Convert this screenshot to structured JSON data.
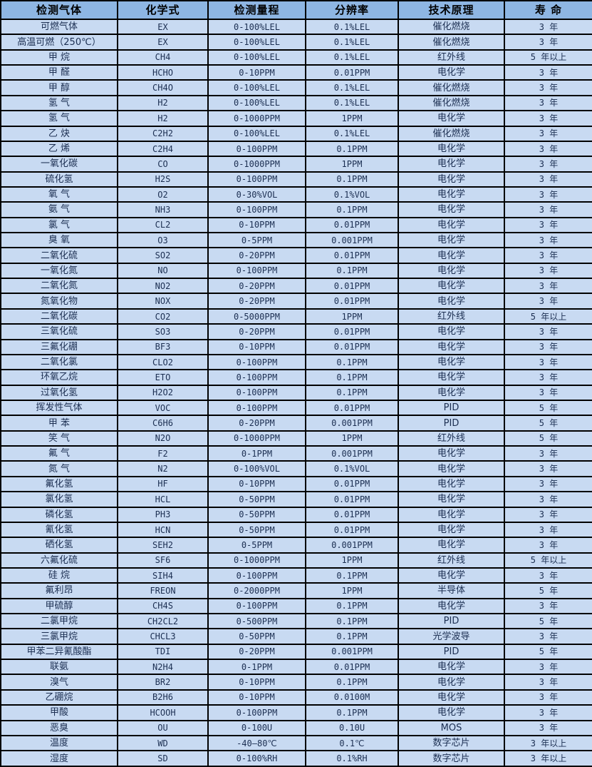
{
  "colors": {
    "header_bg": "#8eb6e3",
    "cell_bg": "#c8daf2",
    "border": "#000000",
    "body_text": "#1c2f52",
    "header_text": "#000000"
  },
  "table": {
    "columns": [
      {
        "label": "检测气体"
      },
      {
        "label": "化学式"
      },
      {
        "label": "检测量程"
      },
      {
        "label": "分辨率"
      },
      {
        "label": "技术原理"
      },
      {
        "label": "寿 命"
      }
    ],
    "column_keys": [
      "gas-name",
      "chemical-formula",
      "detection-range",
      "resolution",
      "technology-principle",
      "lifespan"
    ],
    "rows": [
      [
        "可燃气体",
        "EX",
        "0-100%LEL",
        "0.1%LEL",
        "催化燃烧",
        "3 年"
      ],
      [
        "高温可燃（250℃）",
        "EX",
        "0-100%LEL",
        "0.1%LEL",
        "催化燃烧",
        "3 年"
      ],
      [
        "甲 烷",
        "CH4",
        "0-100%LEL",
        "0.1%LEL",
        "红外线",
        "5 年以上"
      ],
      [
        "甲 醛",
        "HCHO",
        "0-10PPM",
        "0.01PPM",
        "电化学",
        "3 年"
      ],
      [
        "甲 醇",
        "CH4O",
        "0-100%LEL",
        "0.1%LEL",
        "催化燃烧",
        "3 年"
      ],
      [
        "氢 气",
        "H2",
        "0-100%LEL",
        "0.1%LEL",
        "催化燃烧",
        "3 年"
      ],
      [
        "氢 气",
        "H2",
        "0-1000PPM",
        "1PPM",
        "电化学",
        "3 年"
      ],
      [
        "乙 炔",
        "C2H2",
        "0-100%LEL",
        "0.1%LEL",
        "催化燃烧",
        "3 年"
      ],
      [
        "乙 烯",
        "C2H4",
        "0-100PPM",
        "0.1PPM",
        "电化学",
        "3 年"
      ],
      [
        "一氧化碳",
        "CO",
        "0-1000PPM",
        "1PPM",
        "电化学",
        "3 年"
      ],
      [
        "硫化氢",
        "H2S",
        "0-100PPM",
        "0.1PPM",
        "电化学",
        "3 年"
      ],
      [
        "氧 气",
        "O2",
        "0-30%VOL",
        "0.1%VOL",
        "电化学",
        "3 年"
      ],
      [
        "氨 气",
        "NH3",
        "0-100PPM",
        "0.1PPM",
        "电化学",
        "3 年"
      ],
      [
        "氯 气",
        "CL2",
        "0-10PPM",
        "0.01PPM",
        "电化学",
        "3 年"
      ],
      [
        "臭 氧",
        "O3",
        "0-5PPM",
        "0.001PPM",
        "电化学",
        "3 年"
      ],
      [
        "二氧化硫",
        "SO2",
        "0-20PPM",
        "0.01PPM",
        "电化学",
        "3 年"
      ],
      [
        "一氧化氮",
        "NO",
        "0-100PPM",
        "0.1PPM",
        "电化学",
        "3 年"
      ],
      [
        "二氧化氮",
        "NO2",
        "0-20PPM",
        "0.01PPM",
        "电化学",
        "3 年"
      ],
      [
        "氮氧化物",
        "NOX",
        "0-20PPM",
        "0.01PPM",
        "电化学",
        "3 年"
      ],
      [
        "二氧化碳",
        "CO2",
        "0-5000PPM",
        "1PPM",
        "红外线",
        "5 年以上"
      ],
      [
        "三氧化硫",
        "SO3",
        "0-20PPM",
        "0.01PPM",
        "电化学",
        "3 年"
      ],
      [
        "三氟化硼",
        "BF3",
        "0-10PPM",
        "0.01PPM",
        "电化学",
        "3 年"
      ],
      [
        "二氧化氯",
        "CLO2",
        "0-100PPM",
        "0.1PPM",
        "电化学",
        "3 年"
      ],
      [
        "环氧乙烷",
        "ETO",
        "0-100PPM",
        "0.1PPM",
        "电化学",
        "3 年"
      ],
      [
        "过氧化氢",
        "H2O2",
        "0-100PPM",
        "0.1PPM",
        "电化学",
        "3 年"
      ],
      [
        "挥发性气体",
        "VOC",
        "0-100PPM",
        "0.01PPM",
        "PID",
        "5 年"
      ],
      [
        "甲 苯",
        "C6H6",
        "0-20PPM",
        "0.001PPM",
        "PID",
        "5 年"
      ],
      [
        "笑 气",
        "N2O",
        "0-1000PPM",
        "1PPM",
        "红外线",
        "5 年"
      ],
      [
        "氟 气",
        "F2",
        "0-1PPM",
        "0.001PPM",
        "电化学",
        "3 年"
      ],
      [
        "氮 气",
        "N2",
        "0-100%VOL",
        "0.1%VOL",
        "电化学",
        "3 年"
      ],
      [
        "氟化氢",
        "HF",
        "0-10PPM",
        "0.01PPM",
        "电化学",
        "3 年"
      ],
      [
        "氯化氢",
        "HCL",
        "0-50PPM",
        "0.01PPM",
        "电化学",
        "3 年"
      ],
      [
        "磷化氢",
        "PH3",
        "0-50PPM",
        "0.01PPM",
        "电化学",
        "3 年"
      ],
      [
        "氰化氢",
        "HCN",
        "0-50PPM",
        "0.01PPM",
        "电化学",
        "3 年"
      ],
      [
        "硒化氢",
        "SEH2",
        "0-5PPM",
        "0.001PPM",
        "电化学",
        "3 年"
      ],
      [
        "六氟化硫",
        "SF6",
        "0-1000PPM",
        "1PPM",
        "红外线",
        "5 年以上"
      ],
      [
        "硅 烷",
        "SIH4",
        "0-100PPM",
        "0.1PPM",
        "电化学",
        "3 年"
      ],
      [
        "氟利昂",
        "FREON",
        "0-2000PPM",
        "1PPM",
        "半导体",
        "5 年"
      ],
      [
        "甲硫醇",
        "CH4S",
        "0-100PPM",
        "0.1PPM",
        "电化学",
        "3 年"
      ],
      [
        "二氯甲烷",
        "CH2CL2",
        "0-500PPM",
        "0.1PPM",
        "PID",
        "5 年"
      ],
      [
        "三氯甲烷",
        "CHCL3",
        "0-50PPM",
        "0.1PPM",
        "光学波导",
        "3 年"
      ],
      [
        "甲苯二异氰酸酯",
        "TDI",
        "0-20PPM",
        "0.001PPM",
        "PID",
        "5 年"
      ],
      [
        "联氨",
        "N2H4",
        "0-1PPM",
        "0.01PPM",
        "电化学",
        "3 年"
      ],
      [
        "溴气",
        "BR2",
        "0-10PPM",
        "0.1PPM",
        "电化学",
        "3 年"
      ],
      [
        "乙硼烷",
        "B2H6",
        "0-10PPM",
        "0.0100M",
        "电化学",
        "3 年"
      ],
      [
        "甲酸",
        "HCOOH",
        "0-100PPM",
        "0.1PPM",
        "电化学",
        "3 年"
      ],
      [
        "恶臭",
        "OU",
        "0-100U",
        "0.10U",
        "MOS",
        "3 年"
      ],
      [
        "温度",
        "WD",
        "-40—80℃",
        "0.1℃",
        "数字芯片",
        "3 年以上"
      ],
      [
        "湿度",
        "SD",
        "0-100%RH",
        "0.1%RH",
        "数字芯片",
        "3 年以上"
      ]
    ]
  }
}
